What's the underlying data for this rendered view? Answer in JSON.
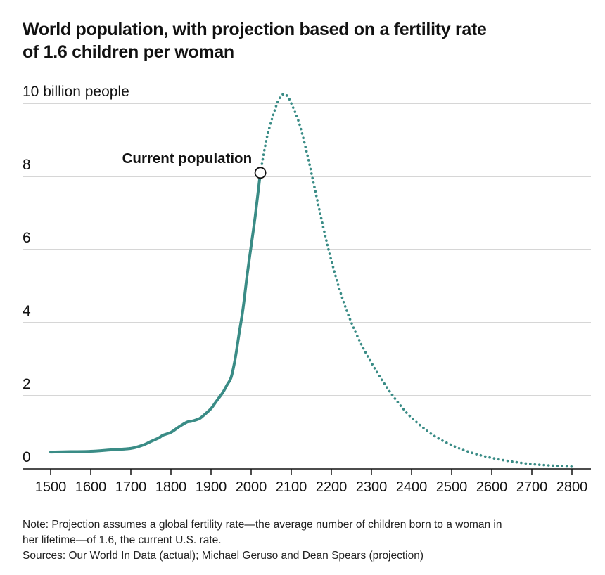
{
  "title_line1": "World population, with projection based on a fertility rate",
  "title_line2": "of 1.6 children per woman",
  "notes": {
    "line1": "Note: Projection assumes a global fertility rate—the average number of children born to a woman in",
    "line2": "her lifetime—of 1.6, the current U.S. rate.",
    "line3": "Sources: Our World In Data (actual); Michael Geruso and Dean Spears (projection)"
  },
  "colors": {
    "series": "#3a8c86",
    "grid": "#c8c8c8",
    "axis": "#111111"
  },
  "chart_data": {
    "type": "line",
    "title": "World population, with projection based on a fertility rate of 1.6 children per woman",
    "ylabel": "10 billion people",
    "xlim": [
      1500,
      2800
    ],
    "ylim": [
      0,
      10
    ],
    "yticks": [
      {
        "value": 0,
        "label": "0"
      },
      {
        "value": 2,
        "label": "2"
      },
      {
        "value": 4,
        "label": "4"
      },
      {
        "value": 6,
        "label": "6"
      },
      {
        "value": 8,
        "label": "8"
      },
      {
        "value": 10,
        "label": "10 billion people"
      }
    ],
    "xticks": [
      1500,
      1600,
      1700,
      1800,
      1900,
      2000,
      2100,
      2200,
      2300,
      2400,
      2500,
      2600,
      2700,
      2800
    ],
    "xtick_labels": [
      "1500",
      "1600",
      "1700",
      "1800",
      "1900",
      "2000",
      "2100",
      "2200",
      "2300",
      "2400",
      "2500",
      "2600",
      "2700",
      "2800"
    ],
    "annotation": {
      "label": "Current population",
      "x": 2023,
      "y": 8.1
    },
    "series": [
      {
        "name": "Actual",
        "style": "solid",
        "x": [
          1500,
          1550,
          1600,
          1650,
          1700,
          1730,
          1750,
          1770,
          1780,
          1800,
          1820,
          1840,
          1850,
          1870,
          1880,
          1900,
          1910,
          1920,
          1930,
          1940,
          1950,
          1960,
          1970,
          1980,
          1990,
          2000,
          2010,
          2023
        ],
        "y": [
          0.46,
          0.47,
          0.48,
          0.52,
          0.56,
          0.65,
          0.75,
          0.85,
          0.92,
          1.0,
          1.15,
          1.28,
          1.3,
          1.37,
          1.45,
          1.65,
          1.8,
          1.95,
          2.1,
          2.3,
          2.5,
          3.0,
          3.7,
          4.4,
          5.3,
          6.1,
          6.9,
          8.1
        ]
      },
      {
        "name": "Projection",
        "style": "dotted",
        "x": [
          2023,
          2040,
          2060,
          2070,
          2080,
          2090,
          2100,
          2120,
          2140,
          2160,
          2180,
          2200,
          2225,
          2250,
          2275,
          2300,
          2325,
          2350,
          2375,
          2400,
          2450,
          2500,
          2550,
          2600,
          2650,
          2700,
          2750,
          2800
        ],
        "y": [
          8.1,
          9.1,
          9.85,
          10.12,
          10.25,
          10.2,
          10.0,
          9.45,
          8.6,
          7.6,
          6.6,
          5.7,
          4.75,
          4.0,
          3.4,
          2.9,
          2.45,
          2.05,
          1.7,
          1.4,
          0.95,
          0.65,
          0.44,
          0.3,
          0.2,
          0.13,
          0.09,
          0.06
        ]
      }
    ]
  }
}
